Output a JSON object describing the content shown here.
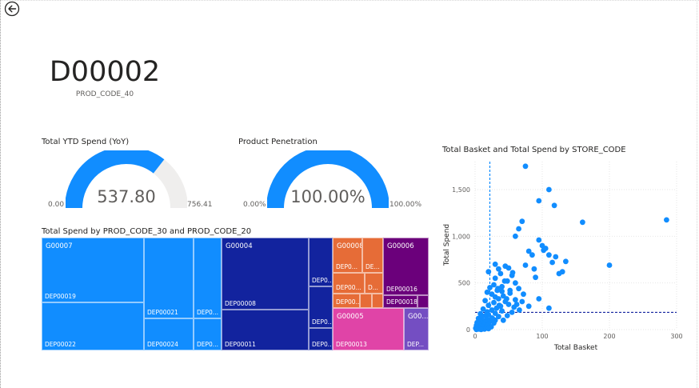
{
  "kpi": {
    "value": "D00002",
    "label": "PROD_CODE_40"
  },
  "gauge_spend": {
    "title": "Total YTD Spend (YoY)",
    "min_label": "0.00",
    "max_label": "756.41",
    "value_label": "537.80",
    "value": 537.8,
    "max": 756.41
  },
  "gauge_penetration": {
    "title": "Product Penetration",
    "min_label": "0.00%",
    "max_label": "100.00%",
    "value_label": "100.00%",
    "value": 100,
    "max": 100
  },
  "treemap": {
    "title": "Total Spend by PROD_CODE_30 and PROD_CODE_20",
    "groups": [
      {
        "name": "G00007",
        "labels": [
          "DEP00019",
          "DEP00022",
          "DEP00021",
          "DEP00024",
          "DEP0...",
          "DEP0..."
        ]
      },
      {
        "name": "G00004",
        "labels": [
          "DEP00008",
          "DEP00011",
          "DEP0...",
          "DEP0...",
          "DEP0..."
        ]
      },
      {
        "name": "G00008",
        "labels": [
          "DEP0...",
          "DE...",
          "DEP00...",
          "D...",
          "DEP00..."
        ]
      },
      {
        "name": "G00006",
        "labels": [
          "DEP00016",
          "DEP00018"
        ]
      },
      {
        "name": "G00005",
        "labels": [
          "DEP00013"
        ]
      },
      {
        "name": "G00...",
        "labels": [
          "DEP..."
        ]
      }
    ]
  },
  "scatter": {
    "title": "Total Basket and Total Spend by STORE_CODE",
    "ylabel": "Total Spend",
    "xlabel": "Total Basket",
    "x_ticks": [
      "0",
      "100",
      "200",
      "300"
    ],
    "y_ticks": [
      "0",
      "500",
      "1,000",
      "1,500"
    ],
    "color": "#118dff"
  },
  "chart_data": {
    "type": "scatter",
    "title": "Total Basket and Total Spend by STORE_CODE",
    "xlabel": "Total Basket",
    "ylabel": "Total Spend",
    "xlim": [
      0,
      300
    ],
    "ylim": [
      0,
      1800
    ],
    "grid": true,
    "reference_lines": {
      "x_average": 22,
      "y_average": 185
    },
    "points": [
      [
        75,
        1750
      ],
      [
        110,
        1500
      ],
      [
        95,
        1380
      ],
      [
        118,
        1330
      ],
      [
        160,
        1150
      ],
      [
        285,
        1175
      ],
      [
        70,
        1160
      ],
      [
        65,
        1080
      ],
      [
        60,
        1000
      ],
      [
        100,
        900
      ],
      [
        105,
        870
      ],
      [
        80,
        840
      ],
      [
        85,
        800
      ],
      [
        110,
        800
      ],
      [
        135,
        730
      ],
      [
        200,
        690
      ],
      [
        75,
        690
      ],
      [
        45,
        680
      ],
      [
        50,
        660
      ],
      [
        35,
        650
      ],
      [
        20,
        620
      ],
      [
        38,
        600
      ],
      [
        55,
        580
      ],
      [
        90,
        560
      ],
      [
        30,
        550
      ],
      [
        48,
        520
      ],
      [
        60,
        500
      ],
      [
        28,
        480
      ],
      [
        40,
        460
      ],
      [
        22,
        450
      ],
      [
        65,
        440
      ],
      [
        33,
        420
      ],
      [
        18,
        400
      ],
      [
        52,
        390
      ],
      [
        25,
        380
      ],
      [
        42,
        360
      ],
      [
        30,
        350
      ],
      [
        35,
        330
      ],
      [
        60,
        320
      ],
      [
        15,
        310
      ],
      [
        45,
        300
      ],
      [
        28,
        290
      ],
      [
        50,
        270
      ],
      [
        20,
        260
      ],
      [
        38,
        250
      ],
      [
        110,
        230
      ],
      [
        32,
        230
      ],
      [
        12,
        220
      ],
      [
        25,
        210
      ],
      [
        40,
        200
      ],
      [
        18,
        190
      ],
      [
        55,
        185
      ],
      [
        30,
        175
      ],
      [
        8,
        170
      ],
      [
        20,
        160
      ],
      [
        15,
        150
      ],
      [
        35,
        140
      ],
      [
        10,
        130
      ],
      [
        25,
        125
      ],
      [
        5,
        120
      ],
      [
        18,
        110
      ],
      [
        30,
        100
      ],
      [
        12,
        95
      ],
      [
        22,
        90
      ],
      [
        8,
        85
      ],
      [
        15,
        80
      ],
      [
        3,
        75
      ],
      [
        28,
        70
      ],
      [
        10,
        65
      ],
      [
        20,
        60
      ],
      [
        6,
        55
      ],
      [
        14,
        50
      ],
      [
        2,
        45
      ],
      [
        18,
        40
      ],
      [
        9,
        35
      ],
      [
        12,
        30
      ],
      [
        4,
        25
      ],
      [
        16,
        22
      ],
      [
        7,
        18
      ],
      [
        1,
        15
      ],
      [
        11,
        12
      ],
      [
        3,
        8
      ],
      [
        6,
        5
      ],
      [
        14,
        5
      ],
      [
        2,
        2
      ],
      [
        9,
        2
      ],
      [
        20,
        10
      ],
      [
        24,
        30
      ],
      [
        26,
        120
      ],
      [
        42,
        100
      ],
      [
        48,
        150
      ],
      [
        36,
        260
      ],
      [
        58,
        240
      ],
      [
        62,
        270
      ],
      [
        70,
        300
      ],
      [
        47,
        330
      ],
      [
        52,
        420
      ],
      [
        44,
        520
      ],
      [
        56,
        610
      ],
      [
        30,
        700
      ],
      [
        80,
        250
      ],
      [
        95,
        330
      ],
      [
        125,
        600
      ],
      [
        115,
        720
      ],
      [
        88,
        650
      ],
      [
        120,
        780
      ],
      [
        102,
        850
      ],
      [
        95,
        960
      ],
      [
        130,
        620
      ],
      [
        72,
        380
      ],
      [
        66,
        210
      ],
      [
        40,
        410
      ],
      [
        34,
        440
      ]
    ]
  }
}
